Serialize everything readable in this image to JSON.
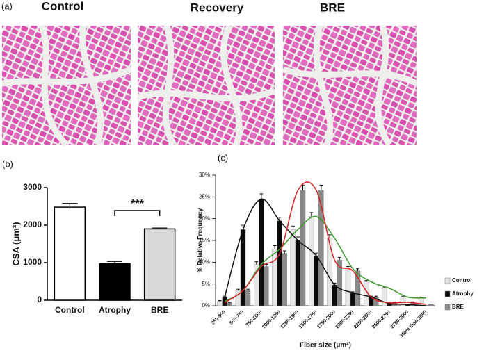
{
  "panel_a": {
    "label": "(a)",
    "images": [
      {
        "label": "Control"
      },
      {
        "label": "Recovery"
      },
      {
        "label": "BRE"
      }
    ]
  },
  "chart_data": [
    {
      "type": "bar",
      "panel_label": "(b)",
      "y_label": "CSA (μm²)",
      "categories": [
        "Control",
        "Atrophy",
        "BRE"
      ],
      "values": [
        2480,
        970,
        1900
      ],
      "errors": [
        100,
        60,
        25
      ],
      "colors": [
        "#ffffff",
        "#000000",
        "#d9d9d9"
      ],
      "ylim": [
        0,
        3000
      ],
      "yticks": [
        0,
        1000,
        2000,
        3000
      ],
      "significance": {
        "label": "***",
        "between": [
          1,
          2
        ]
      }
    },
    {
      "type": "bar",
      "panel_label": "(c)",
      "y_label": "% Relative Frequency",
      "x_label": "Fiber size (μm²)",
      "categories": [
        "250-500",
        "500-750",
        "750-1000",
        "1000-1250",
        "1250-1500",
        "1500-1750",
        "1750-2000",
        "2000-2250",
        "2250-2500",
        "2500-2750",
        "2750-3000",
        "More than 3000"
      ],
      "series": [
        {
          "name": "Control",
          "color": "#e6e6e6",
          "line_color": "#3a9a2a",
          "values": [
            1,
            3.5,
            9.5,
            13,
            17.5,
            20.5,
            15.5,
            8.5,
            5.5,
            4,
            2,
            1.8
          ],
          "errors": [
            0.2,
            0.3,
            0.6,
            0.8,
            0.8,
            0.9,
            0.8,
            0.5,
            0.3,
            0.3,
            0.2,
            0.2
          ]
        },
        {
          "name": "Atrophy",
          "color": "#0a0a0a",
          "line_color": "#111111",
          "values": [
            2,
            17.5,
            24.5,
            19.5,
            15,
            11.5,
            4.8,
            3,
            2,
            0.5,
            0.3,
            0
          ],
          "errors": [
            0.2,
            1,
            1.2,
            0.8,
            0.8,
            0.6,
            0.4,
            0.2,
            0.2,
            0.1,
            0.1,
            0
          ]
        },
        {
          "name": "BRE",
          "color": "#8a8a8a",
          "line_color": "#d42020",
          "values": [
            0.7,
            3.5,
            9,
            12,
            26.5,
            26.5,
            10.5,
            8,
            2,
            0.7,
            0.8,
            0.3
          ],
          "errors": [
            0.1,
            0.3,
            0.5,
            0.6,
            1.2,
            1.2,
            0.6,
            0.5,
            0.2,
            0.1,
            0.1,
            0.1
          ]
        }
      ],
      "ylim": [
        0,
        30
      ],
      "yticks": [
        {
          "value": 0,
          "label": "0%"
        },
        {
          "value": 5,
          "label": "5%"
        },
        {
          "value": 10,
          "label": "10%"
        },
        {
          "value": 15,
          "label": "15%"
        },
        {
          "value": 20,
          "label": "20%"
        },
        {
          "value": 25,
          "label": "25%"
        },
        {
          "value": 30,
          "label": "30%"
        }
      ],
      "legend": "right"
    }
  ]
}
